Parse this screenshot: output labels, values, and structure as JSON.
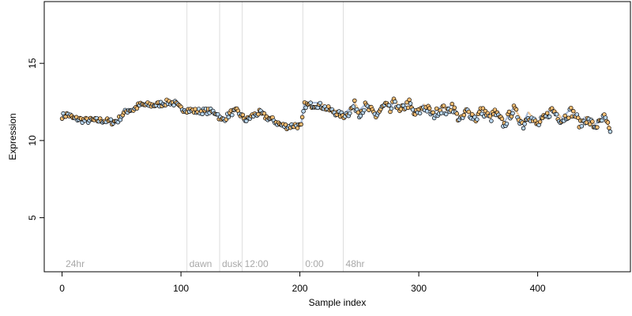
{
  "chart_data": {
    "type": "scatter",
    "title": "",
    "xlabel": "Sample index",
    "ylabel": "Expression",
    "xlim": [
      -15,
      478
    ],
    "ylim": [
      1.5,
      19.0
    ],
    "x_ticks": [
      0,
      100,
      200,
      300,
      400
    ],
    "y_ticks": [
      5,
      10,
      15
    ],
    "grid": false,
    "legend": "none",
    "colors": {
      "plot_border": "#000000",
      "vline": "#dedede",
      "annotation_text": "#a8a8a8",
      "point_edge": "#000000",
      "point_fill_orange": "#f5be74",
      "point_fill_blue": "#b9d6ef",
      "trend_orange": "#e9b676",
      "trend_blue": "#8faad1"
    },
    "vertical_markers": [
      {
        "x": 105,
        "label": "dawn"
      },
      {
        "x": 132.5,
        "label": "dusk"
      },
      {
        "x": 151.5,
        "label": "12:00"
      },
      {
        "x": 202.5,
        "label": "0:00"
      },
      {
        "x": 236.5,
        "label": "48hr"
      }
    ],
    "corner_labels": [
      {
        "x": 3,
        "label": "24hr"
      }
    ],
    "series": [
      {
        "anchors": [
          [
            1,
            11.6
          ],
          [
            5,
            11.7
          ],
          [
            10,
            11.4
          ],
          [
            14,
            11.4
          ],
          [
            18,
            11.3
          ],
          [
            25,
            11.3
          ],
          [
            35,
            11.3
          ],
          [
            43,
            11.2
          ],
          [
            47,
            11.3
          ],
          [
            51,
            11.7
          ],
          [
            56,
            12.0
          ],
          [
            60,
            12.0
          ],
          [
            65,
            12.3
          ],
          [
            70,
            12.3
          ],
          [
            78,
            12.3
          ],
          [
            85,
            12.4
          ],
          [
            90,
            12.5
          ],
          [
            95,
            12.4
          ],
          [
            99,
            12.1
          ],
          [
            105,
            12.0
          ],
          [
            112,
            11.9
          ],
          [
            118,
            11.9
          ],
          [
            124,
            11.9
          ],
          [
            130,
            11.8
          ],
          [
            134,
            11.3
          ],
          [
            138,
            11.5
          ],
          [
            142,
            11.8
          ],
          [
            147,
            11.9
          ],
          [
            151,
            11.6
          ],
          [
            155,
            11.3
          ],
          [
            160,
            11.6
          ],
          [
            166,
            11.8
          ],
          [
            172,
            11.5
          ],
          [
            178,
            11.3
          ],
          [
            184,
            11.0
          ],
          [
            190,
            10.9
          ],
          [
            196,
            11.0
          ],
          [
            201,
            10.9
          ],
          [
            204,
            12.3
          ],
          [
            210,
            12.3
          ],
          [
            216,
            12.3
          ],
          [
            222,
            12.1
          ],
          [
            230,
            11.8
          ],
          [
            237,
            11.6
          ],
          [
            242,
            11.9
          ],
          [
            246,
            12.3
          ],
          [
            250,
            11.8
          ],
          [
            255,
            12.2
          ],
          [
            260,
            11.9
          ],
          [
            264,
            11.6
          ],
          [
            268,
            12.0
          ],
          [
            272,
            12.3
          ],
          [
            276,
            11.9
          ],
          [
            280,
            12.6
          ],
          [
            284,
            11.8
          ],
          [
            288,
            12.2
          ],
          [
            292,
            12.4
          ],
          [
            296,
            11.7
          ],
          [
            300,
            11.8
          ],
          [
            304,
            12.2
          ],
          [
            308,
            12.0
          ],
          [
            312,
            11.6
          ],
          [
            316,
            11.9
          ],
          [
            320,
            12.1
          ],
          [
            324,
            11.8
          ],
          [
            328,
            12.3
          ],
          [
            332,
            11.6
          ],
          [
            336,
            11.3
          ],
          [
            340,
            11.9
          ],
          [
            344,
            11.7
          ],
          [
            348,
            11.4
          ],
          [
            352,
            11.9
          ],
          [
            356,
            11.8
          ],
          [
            360,
            11.4
          ],
          [
            364,
            11.8
          ],
          [
            368,
            11.4
          ],
          [
            372,
            11.0
          ],
          [
            376,
            11.6
          ],
          [
            380,
            12.0
          ],
          [
            384,
            11.5
          ],
          [
            388,
            11.0
          ],
          [
            392,
            11.7
          ],
          [
            396,
            11.3
          ],
          [
            400,
            11.0
          ],
          [
            404,
            11.3
          ],
          [
            408,
            11.6
          ],
          [
            412,
            12.0
          ],
          [
            416,
            11.7
          ],
          [
            420,
            11.3
          ],
          [
            424,
            11.6
          ],
          [
            428,
            11.9
          ],
          [
            432,
            11.6
          ],
          [
            436,
            11.0
          ],
          [
            440,
            11.4
          ],
          [
            444,
            11.2
          ],
          [
            448,
            10.9
          ],
          [
            452,
            11.1
          ],
          [
            456,
            11.5
          ],
          [
            460,
            10.7
          ]
        ],
        "n_points": 462,
        "noise": 0.18
      }
    ]
  }
}
